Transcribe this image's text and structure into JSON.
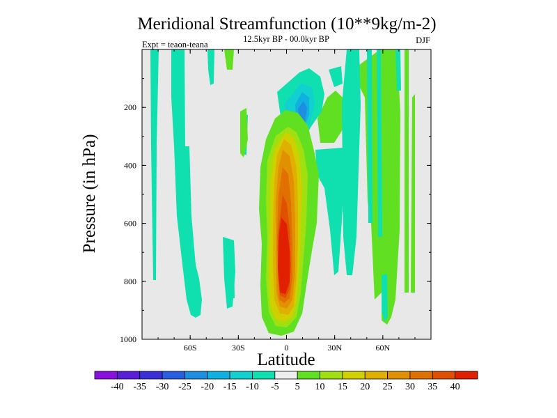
{
  "chart_data": {
    "type": "heatmap",
    "title": "Meridional Streamfunction (10**9kg/m-2)",
    "subtitle": "12.5kyr BP - 00.0kyr BP",
    "season": "DJF",
    "experiment": "Expt = teaon-teana",
    "xlabel": "Latitude",
    "ylabel": "Pressure (in hPa)",
    "xlim": [
      -90,
      90
    ],
    "ylim": [
      0,
      1000
    ],
    "x_ticks": [
      -60,
      -30,
      0,
      30,
      60
    ],
    "x_tick_labels": [
      "60S",
      "30S",
      "0",
      "30N",
      "60N"
    ],
    "y_ticks": [
      200,
      400,
      600,
      800,
      1000
    ],
    "y_tick_labels": [
      "200",
      "400",
      "600",
      "800",
      "1000"
    ],
    "colorbar": {
      "labels": [
        "-40",
        "-35",
        "-30",
        "-25",
        "-20",
        "-15",
        "-10",
        "-5",
        "5",
        "10",
        "15",
        "20",
        "25",
        "30",
        "35",
        "40"
      ],
      "colors": [
        "#8a10e0",
        "#5a1ed8",
        "#3a2ed8",
        "#2a5ee0",
        "#1e8ee0",
        "#10b0e0",
        "#10d0d0",
        "#10e0b0",
        "#eeeeee",
        "#60e020",
        "#a0e010",
        "#d0d000",
        "#e0b000",
        "#e09000",
        "#e07000",
        "#e05000",
        "#e02000"
      ]
    },
    "background_color": "#e8e8e8",
    "features": [
      {
        "name": "tropical-ascending-cell",
        "level": 40,
        "lat_range": [
          -15,
          15
        ],
        "pressure_range": [
          160,
          990
        ]
      },
      {
        "name": "upper-tropical-negative-cell",
        "level": -25,
        "lat_range": [
          -5,
          15
        ],
        "pressure_range": [
          80,
          280
        ]
      },
      {
        "name": "southern-midlat-negative-cells",
        "level": -10,
        "lat_range": [
          -85,
          -50
        ],
        "pressure_range": [
          0,
          920
        ]
      },
      {
        "name": "northern-negative-cells",
        "level": -10,
        "lat_range": [
          15,
          80
        ],
        "pressure_range": [
          0,
          940
        ]
      },
      {
        "name": "northern-positive-band",
        "level": 10,
        "lat_range": [
          45,
          80
        ],
        "pressure_range": [
          0,
          960
        ]
      }
    ]
  }
}
